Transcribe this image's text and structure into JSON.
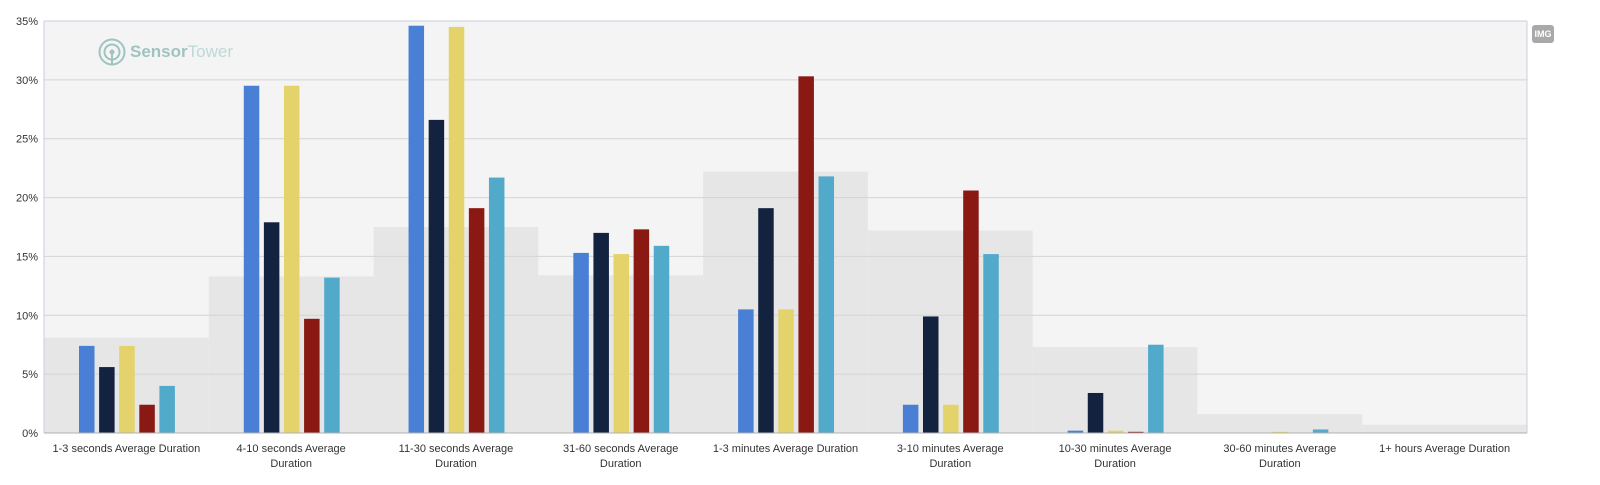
{
  "colors": {
    "plot_bg": "#f4f4f4",
    "grid": "#d4d4d4",
    "background_bars": "#e6e6e6",
    "series": [
      "#4a7fd6",
      "#13223f",
      "#e3d36a",
      "#8a1813",
      "#52aacb"
    ]
  },
  "logo": {
    "part1": "Sensor",
    "part2": "Tower",
    "icon": "sensortower-logo-icon"
  },
  "badge": {
    "label": "IMG"
  },
  "chart_data": {
    "type": "bar",
    "title": "",
    "xlabel": "",
    "ylabel": "",
    "ylim": [
      0,
      35
    ],
    "yticks": [
      "0%",
      "5%",
      "10%",
      "15%",
      "20%",
      "25%",
      "30%",
      "35%"
    ],
    "grid": true,
    "categories": [
      [
        "1-3 seconds Average Duration"
      ],
      [
        "4-10 seconds Average",
        "Duration"
      ],
      [
        "11-30 seconds Average",
        "Duration"
      ],
      [
        "31-60 seconds Average",
        "Duration"
      ],
      [
        "1-3 minutes Average Duration"
      ],
      [
        "3-10 minutes Average",
        "Duration"
      ],
      [
        "10-30 minutes Average",
        "Duration"
      ],
      [
        "30-60 minutes Average",
        "Duration"
      ],
      [
        "1+ hours Average Duration"
      ]
    ],
    "background_values": [
      8.1,
      13.3,
      17.5,
      13.4,
      22.2,
      17.2,
      7.3,
      1.6,
      0.7
    ],
    "series": [
      {
        "values": [
          7.4,
          29.5,
          34.6,
          15.3,
          10.5,
          2.4,
          0.2,
          0.0,
          0.0
        ]
      },
      {
        "values": [
          5.6,
          17.9,
          26.6,
          17.0,
          19.1,
          9.9,
          3.4,
          0.0,
          0.0
        ]
      },
      {
        "values": [
          7.4,
          29.5,
          34.5,
          15.2,
          10.5,
          2.4,
          0.2,
          0.1,
          0.0
        ]
      },
      {
        "values": [
          2.4,
          9.7,
          19.1,
          17.3,
          30.3,
          20.6,
          0.1,
          0.0,
          0.0
        ]
      },
      {
        "values": [
          4.0,
          13.2,
          21.7,
          15.9,
          21.8,
          15.2,
          7.5,
          0.3,
          0.0
        ]
      }
    ]
  }
}
